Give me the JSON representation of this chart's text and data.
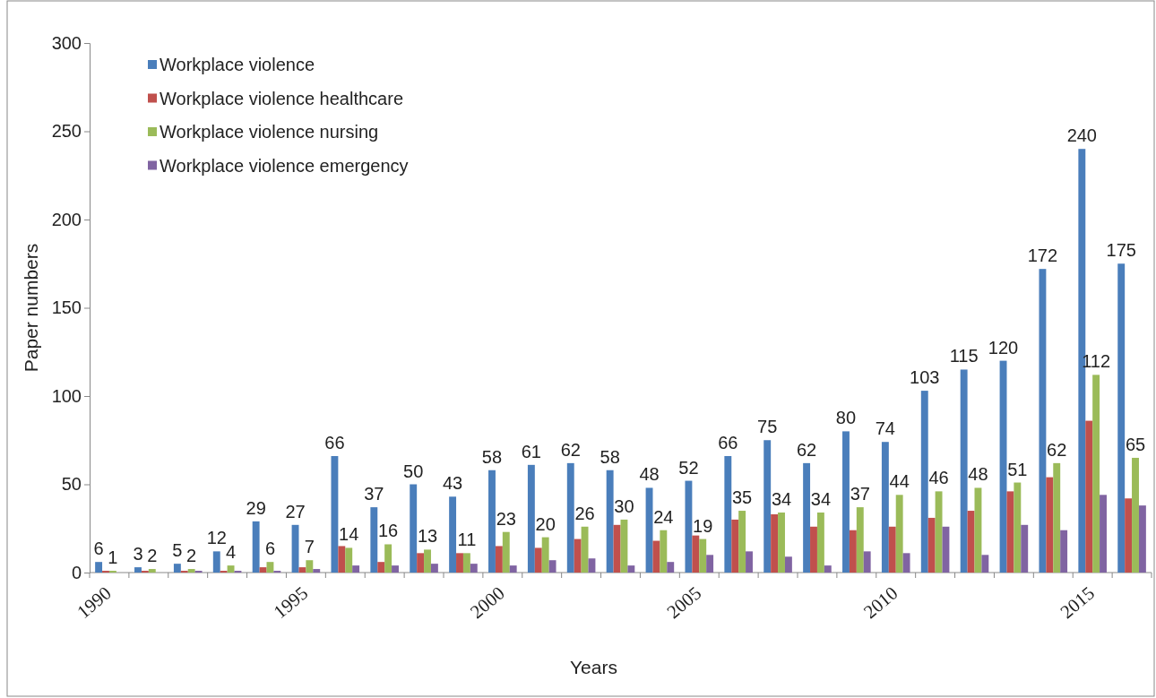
{
  "chart_data": {
    "type": "bar",
    "xlabel": "Years",
    "ylabel": "Paper numbers",
    "categories": [
      "1990",
      null,
      null,
      null,
      null,
      "1995",
      null,
      null,
      null,
      null,
      "2000",
      null,
      null,
      null,
      null,
      "2005",
      null,
      null,
      null,
      null,
      "2010",
      null,
      null,
      null,
      null,
      "2015",
      null
    ],
    "ylim": [
      0,
      300
    ],
    "yticks": [
      0,
      50,
      100,
      150,
      200,
      250,
      300
    ],
    "grid": false,
    "legend": "top left",
    "series": [
      {
        "name": "Workplace violence",
        "color": "#4a7ebb",
        "values": [
          6,
          3,
          5,
          12,
          29,
          27,
          66,
          37,
          50,
          43,
          58,
          61,
          62,
          58,
          48,
          52,
          66,
          75,
          62,
          80,
          74,
          103,
          115,
          120,
          172,
          240,
          175
        ],
        "value_labels": [
          "6",
          "3",
          "5",
          "12",
          "29",
          "27",
          "66",
          "37",
          "50",
          "43",
          "58",
          "61",
          "62",
          "58",
          "48",
          "52",
          "66",
          "75",
          "62",
          "80",
          "74",
          "103",
          "115",
          "120",
          "172",
          "240",
          "175"
        ]
      },
      {
        "name": "Workplace violence healthcare",
        "color": "#c0504d",
        "values": [
          1,
          1,
          1,
          1,
          3,
          3,
          15,
          6,
          11,
          11,
          15,
          14,
          19,
          27,
          18,
          21,
          30,
          33,
          26,
          24,
          26,
          31,
          35,
          46,
          54,
          86,
          42
        ]
      },
      {
        "name": "Workplace violence nursing",
        "color": "#9bbb59",
        "values": [
          1,
          2,
          2,
          4,
          6,
          7,
          14,
          16,
          13,
          11,
          23,
          20,
          26,
          30,
          24,
          19,
          35,
          34,
          34,
          37,
          44,
          46,
          48,
          51,
          62,
          112,
          65
        ],
        "value_labels": [
          "1",
          "2",
          "2",
          "4",
          "6",
          "7",
          "14",
          "16",
          "13",
          "11",
          "23",
          "20",
          "26",
          "30",
          "24",
          "19",
          "35",
          "34",
          "34",
          "37",
          "44",
          "46",
          "48",
          "51",
          "62",
          "112",
          "65"
        ]
      },
      {
        "name": "Workplace violence emergency",
        "color": "#8064a2",
        "values": [
          0,
          0,
          1,
          1,
          1,
          2,
          4,
          4,
          5,
          5,
          4,
          7,
          8,
          4,
          6,
          10,
          12,
          9,
          4,
          12,
          11,
          26,
          10,
          27,
          24,
          44,
          38
        ]
      }
    ]
  }
}
